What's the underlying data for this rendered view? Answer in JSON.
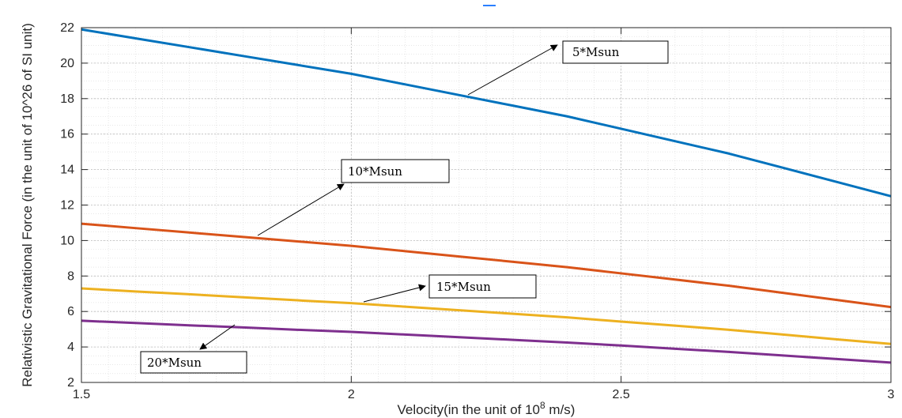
{
  "chart_data": {
    "type": "line",
    "title": "",
    "xlabel": "Velocity(in the unit of 10",
    "xlabel_superscript": "8",
    "xlabel_suffix": " m/s)",
    "ylabel": "Relativistic Gravitational Force (in the unit of 10^26 of SI unit)",
    "xlim": [
      1.5,
      3
    ],
    "ylim": [
      2,
      22
    ],
    "xticks": [
      1.5,
      2,
      2.5,
      3
    ],
    "xtick_labels": [
      "1.5",
      "2",
      "2.5",
      "3"
    ],
    "yticks": [
      2,
      4,
      6,
      8,
      10,
      12,
      14,
      16,
      18,
      20,
      22
    ],
    "ytick_labels": [
      "2",
      "4",
      "6",
      "8",
      "10",
      "12",
      "14",
      "16",
      "18",
      "20",
      "22"
    ],
    "grid": true,
    "minor_grid": true,
    "x": [
      1.5,
      1.6,
      1.7,
      1.8,
      1.9,
      2.0,
      2.1,
      2.2,
      2.3,
      2.4,
      2.5,
      2.6,
      2.7,
      2.8,
      2.9,
      3.0
    ],
    "series": [
      {
        "name": "5*Msun",
        "color": "#0072BD",
        "values": [
          21.9,
          21.4,
          20.9,
          20.4,
          19.9,
          19.4,
          18.8,
          18.2,
          17.6,
          17.0,
          16.3,
          15.6,
          14.9,
          14.1,
          13.3,
          12.5
        ]
      },
      {
        "name": "10*Msun",
        "color": "#D95319",
        "values": [
          10.95,
          10.7,
          10.45,
          10.2,
          9.95,
          9.7,
          9.4,
          9.1,
          8.8,
          8.5,
          8.15,
          7.8,
          7.45,
          7.05,
          6.65,
          6.25
        ]
      },
      {
        "name": "15*Msun",
        "color": "#EDB120",
        "values": [
          7.3,
          7.13,
          6.97,
          6.8,
          6.63,
          6.47,
          6.27,
          6.07,
          5.87,
          5.67,
          5.43,
          5.2,
          4.97,
          4.7,
          4.43,
          4.17
        ]
      },
      {
        "name": "20*Msun",
        "color": "#7E2F8E",
        "values": [
          5.48,
          5.35,
          5.22,
          5.1,
          4.97,
          4.85,
          4.7,
          4.55,
          4.4,
          4.25,
          4.08,
          3.9,
          3.72,
          3.52,
          3.32,
          3.12
        ]
      }
    ],
    "annotations": [
      {
        "text": "5*Msun"
      },
      {
        "text": "10*Msun"
      },
      {
        "text": "15*Msun"
      },
      {
        "text": "20*Msun"
      }
    ]
  }
}
